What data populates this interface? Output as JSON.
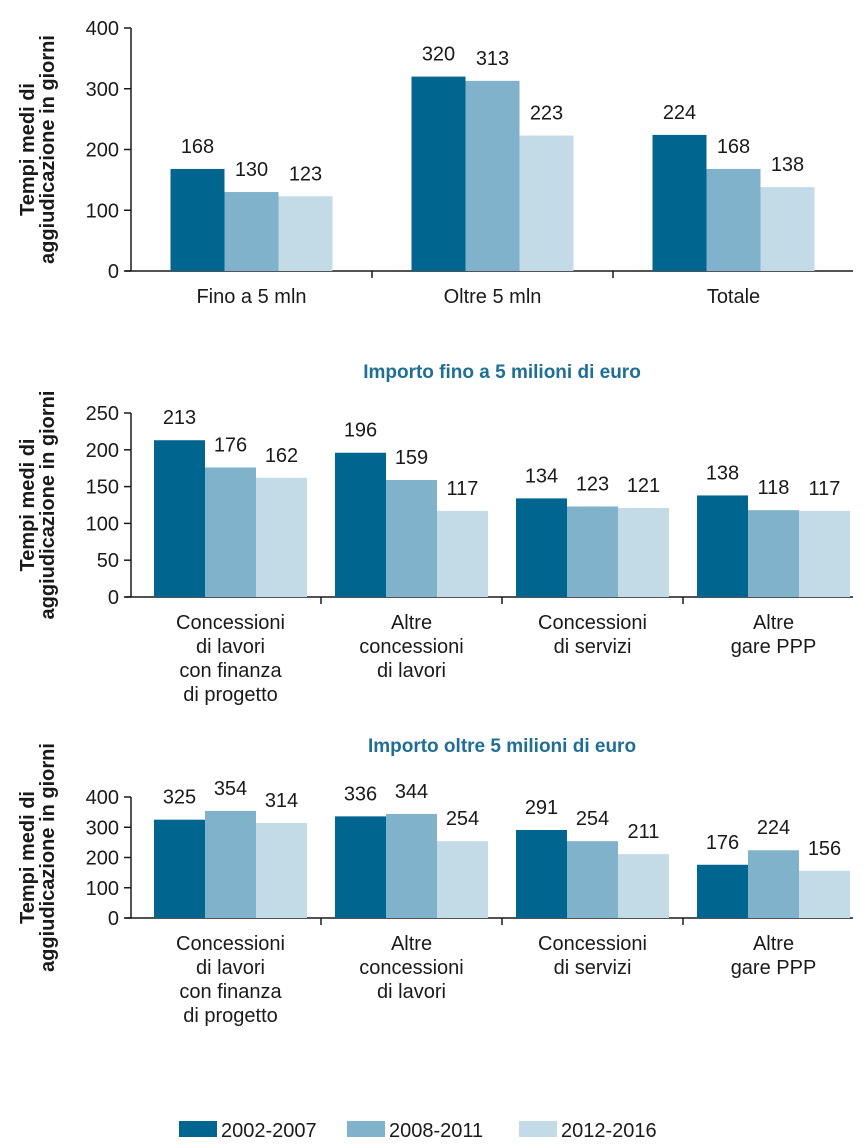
{
  "colors": {
    "series": [
      "#006690",
      "#81b2cc",
      "#c2dbe6"
    ]
  },
  "legend": [
    "2002-2007",
    "2008-2011",
    "2012-2016"
  ],
  "chart_data": [
    {
      "type": "bar",
      "title": "",
      "ylabel": "Tempi medi di aggiudicazione in giorni",
      "ylim": [
        0,
        400
      ],
      "yticks": [
        0,
        100,
        200,
        300,
        400
      ],
      "categories": [
        [
          "Fino a 5 mln"
        ],
        [
          "Oltre 5 mln"
        ],
        [
          "Totale"
        ]
      ],
      "series": [
        {
          "name": "2002-2007",
          "values": [
            168,
            320,
            224
          ]
        },
        {
          "name": "2008-2011",
          "values": [
            130,
            313,
            168
          ]
        },
        {
          "name": "2012-2016",
          "values": [
            123,
            223,
            138
          ]
        }
      ]
    },
    {
      "type": "bar",
      "title": "Importo fino a 5 milioni di euro",
      "ylabel": "Tempi medi di aggiudicazione in giorni",
      "ylim": [
        0,
        250
      ],
      "yticks": [
        0,
        50,
        100,
        150,
        200,
        250
      ],
      "categories": [
        [
          "Concessioni",
          "di lavori",
          "con finanza",
          "di progetto"
        ],
        [
          "Altre",
          "concessioni",
          "di lavori"
        ],
        [
          "Concessioni",
          "di servizi"
        ],
        [
          "Altre",
          "gare PPP"
        ]
      ],
      "series": [
        {
          "name": "2002-2007",
          "values": [
            213,
            196,
            134,
            138
          ]
        },
        {
          "name": "2008-2011",
          "values": [
            176,
            159,
            123,
            118
          ]
        },
        {
          "name": "2012-2016",
          "values": [
            162,
            117,
            121,
            117
          ]
        }
      ]
    },
    {
      "type": "bar",
      "title": "Importo oltre 5 milioni di euro",
      "ylabel": "Tempi medi di aggiudicazione in giorni",
      "ylim": [
        0,
        400
      ],
      "yticks": [
        0,
        100,
        200,
        300,
        400
      ],
      "categories": [
        [
          "Concessioni",
          "di lavori",
          "con finanza",
          "di progetto"
        ],
        [
          "Altre",
          "concessioni",
          "di lavori"
        ],
        [
          "Concessioni",
          "di servizi"
        ],
        [
          "Altre",
          "gare PPP"
        ]
      ],
      "series": [
        {
          "name": "2002-2007",
          "values": [
            325,
            336,
            291,
            176
          ]
        },
        {
          "name": "2008-2011",
          "values": [
            354,
            344,
            254,
            224
          ]
        },
        {
          "name": "2012-2016",
          "values": [
            314,
            254,
            211,
            156
          ]
        }
      ]
    }
  ]
}
